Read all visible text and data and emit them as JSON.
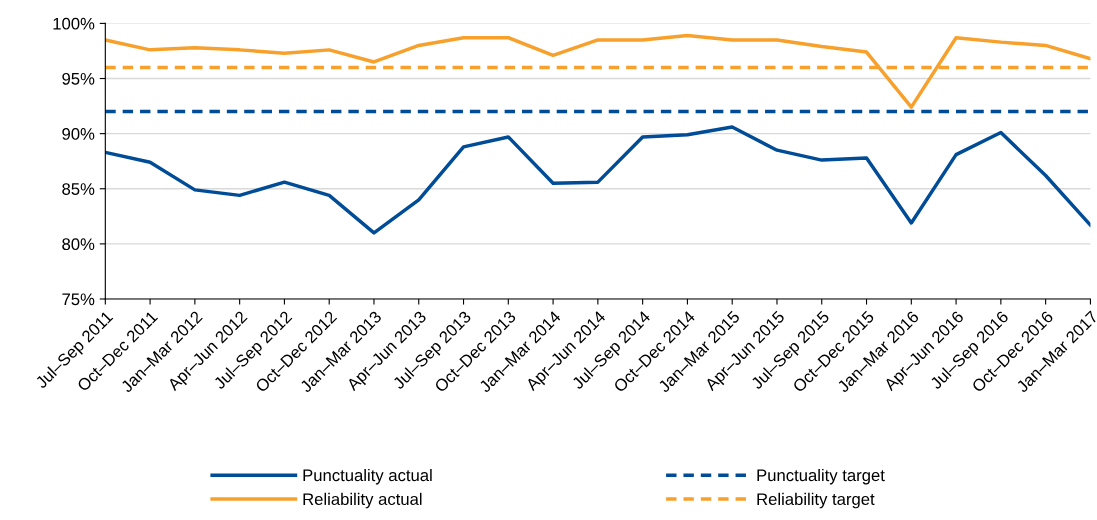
{
  "chart_data": {
    "type": "line",
    "categories": [
      "Jul–Sep 2011",
      "Oct–Dec 2011",
      "Jan–Mar 2012",
      "Apr–Jun 2012",
      "Jul–Sep 2012",
      "Oct–Dec 2012",
      "Jan–Mar 2013",
      "Apr–Jun 2013",
      "Jul–Sep 2013",
      "Oct–Dec 2013",
      "Jan–Mar 2014",
      "Apr–Jun 2014",
      "Jul–Sep 2014",
      "Oct–Dec 2014",
      "Jan–Mar 2015",
      "Apr–Jun 2015",
      "Jul–Sep 2015",
      "Oct–Dec 2015",
      "Jan–Mar 2016",
      "Apr–Jun 2016",
      "Jul–Sep 2016",
      "Oct–Dec 2016",
      "Jan–Mar 2017"
    ],
    "series": [
      {
        "name": "Punctuality actual",
        "color": "#004c97",
        "line_style": "solid",
        "values": [
          88.3,
          87.4,
          84.9,
          84.4,
          85.6,
          84.4,
          81.0,
          84.0,
          88.8,
          89.7,
          85.5,
          85.6,
          89.7,
          89.9,
          90.6,
          88.5,
          87.6,
          87.8,
          81.9,
          88.1,
          90.1,
          86.2,
          81.7
        ]
      },
      {
        "name": "Punctuality target",
        "color": "#004c97",
        "line_style": "dashed",
        "values": [
          92,
          92,
          92,
          92,
          92,
          92,
          92,
          92,
          92,
          92,
          92,
          92,
          92,
          92,
          92,
          92,
          92,
          92,
          92,
          92,
          92,
          92,
          92
        ]
      },
      {
        "name": "Reliability actual",
        "color": "#f7a12c",
        "line_style": "solid",
        "values": [
          98.5,
          97.6,
          97.8,
          97.6,
          97.3,
          97.6,
          96.5,
          98.0,
          98.7,
          98.7,
          97.1,
          98.5,
          98.5,
          98.9,
          98.5,
          98.5,
          97.9,
          97.4,
          92.4,
          98.7,
          98.3,
          98.0,
          96.8
        ]
      },
      {
        "name": "Reliability target",
        "color": "#f7a12c",
        "line_style": "dashed",
        "values": [
          96,
          96,
          96,
          96,
          96,
          96,
          96,
          96,
          96,
          96,
          96,
          96,
          96,
          96,
          96,
          96,
          96,
          96,
          96,
          96,
          96,
          96,
          96
        ]
      }
    ],
    "ylim": [
      75,
      100
    ],
    "yticks": [
      {
        "value": 75,
        "label": "75%"
      },
      {
        "value": 80,
        "label": "80%"
      },
      {
        "value": 85,
        "label": "85%"
      },
      {
        "value": 90,
        "label": "90%"
      },
      {
        "value": 95,
        "label": "95%"
      },
      {
        "value": 100,
        "label": "100%"
      }
    ],
    "grid": "y",
    "legend": "bottom",
    "marker": "none"
  }
}
